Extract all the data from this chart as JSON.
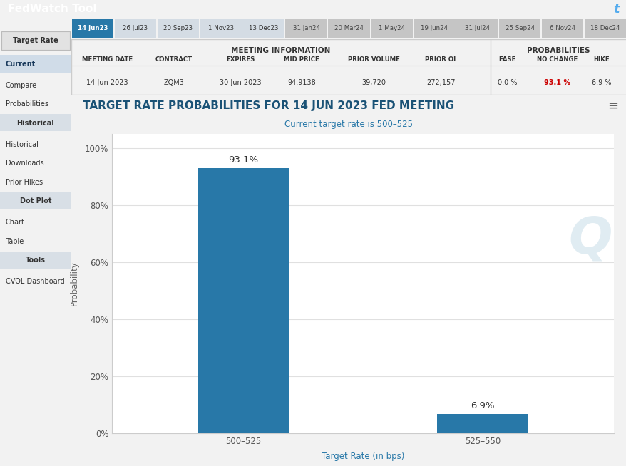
{
  "title": "TARGET RATE PROBABILITIES FOR 14 JUN 2023 FED MEETING",
  "subtitle": "Current target rate is 500–525",
  "xlabel": "Target Rate (in bps)",
  "ylabel": "Probability",
  "categories": [
    "500–525",
    "525–550"
  ],
  "values": [
    93.1,
    6.9
  ],
  "bar_color": "#2878a8",
  "ytick_labels": [
    "0%",
    "20%",
    "40%",
    "60%",
    "80%",
    "100%"
  ],
  "ytick_values": [
    0,
    20,
    40,
    60,
    80,
    100
  ],
  "header_bg": "#3a4f63",
  "header_text": "FedWatch Tool",
  "header_text_color": "#ffffff",
  "tab_active_bg": "#2878a8",
  "tab_active_text": "#ffffff",
  "tab_labels": [
    "14 Jun23",
    "26 Jul23",
    "20 Sep23",
    "1 Nov23",
    "13 Dec23",
    "31 Jan24",
    "20 Mar24",
    "1 May24",
    "19 Jun24",
    "31 Jul24",
    "25 Sep24",
    "6 Nov24",
    "18 Dec24"
  ],
  "meeting_info_headers": [
    "MEETING DATE",
    "CONTRACT",
    "EXPIRES",
    "MID PRICE",
    "PRIOR VOLUME",
    "PRIOR OI"
  ],
  "meeting_info_values": [
    "14 Jun 2023",
    "ZQM3",
    "30 Jun 2023",
    "94.9138",
    "39,720",
    "272,157"
  ],
  "prob_headers": [
    "EASE",
    "NO CHANGE",
    "HIKE"
  ],
  "prob_values": [
    "0.0 %",
    "93.1 %",
    "6.9 %"
  ],
  "no_change_color": "#cc0000",
  "chart_bg": "#ffffff",
  "grid_color": "#e0e0e0",
  "title_color": "#1a5276",
  "subtitle_color": "#2878a8",
  "page_bg": "#f2f2f2",
  "sidebar_bg": "#f2f2f2",
  "table_bg": "#ffffff",
  "tab_bar_bg": "#e8e8e8"
}
